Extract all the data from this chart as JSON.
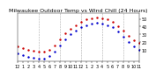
{
  "title": "Milwaukee Outdoor Temp vs Wind Chill (24 Hours)",
  "temp_x": [
    0,
    1,
    2,
    3,
    4,
    5,
    6,
    7,
    8,
    9,
    10,
    11,
    12,
    13,
    14,
    15,
    16,
    17,
    18,
    19,
    20,
    21,
    22,
    23
  ],
  "temp_y": [
    14,
    12,
    10,
    9,
    8,
    8,
    10,
    16,
    24,
    31,
    37,
    42,
    46,
    49,
    51,
    52,
    51,
    49,
    46,
    41,
    35,
    28,
    22,
    19
  ],
  "wind_x": [
    0,
    1,
    2,
    3,
    4,
    5,
    6,
    7,
    8,
    9,
    10,
    11,
    12,
    13,
    14,
    15,
    16,
    17,
    18,
    19,
    20,
    21,
    22,
    23
  ],
  "wind_y": [
    5,
    3,
    1,
    0,
    -1,
    -1,
    2,
    8,
    16,
    23,
    30,
    35,
    39,
    42,
    44,
    45,
    44,
    42,
    39,
    34,
    27,
    20,
    14,
    10
  ],
  "temp_color": "#cc0000",
  "wind_color": "#0000cc",
  "grid_color": "#888888",
  "bg_color": "#ffffff",
  "y_ticks": [
    10,
    20,
    30,
    40,
    50
  ],
  "ylim": [
    -5,
    58
  ],
  "xlim": [
    0,
    23
  ],
  "vgrid_positions": [
    4,
    8,
    12,
    16,
    20
  ],
  "x_tick_positions": [
    0,
    1,
    2,
    3,
    4,
    5,
    6,
    7,
    8,
    9,
    10,
    11,
    12,
    13,
    14,
    15,
    16,
    17,
    18,
    19,
    20,
    21,
    22,
    23
  ],
  "x_tick_labels": [
    "12",
    "1",
    "2",
    "3",
    "4",
    "5",
    "6",
    "7",
    "8",
    "9",
    "10",
    "11",
    "12",
    "1",
    "2",
    "3",
    "4",
    "5",
    "6",
    "7",
    "8",
    "9",
    "10",
    "11"
  ],
  "title_fontsize": 4.5,
  "tick_fontsize": 3.5,
  "marker_size": 1.5
}
